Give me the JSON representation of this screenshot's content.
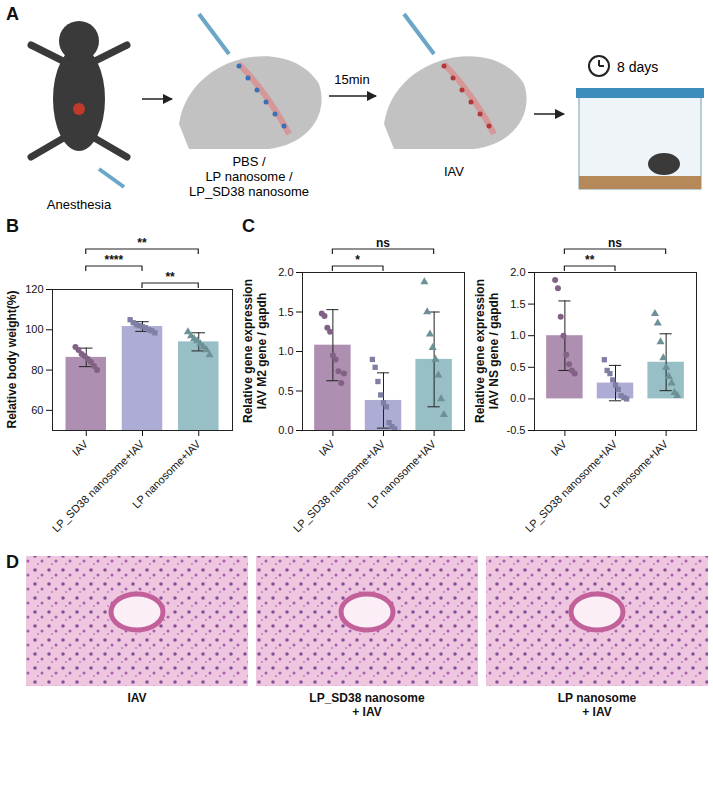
{
  "schematic": {
    "label": "A",
    "anesthesia": "Anesthesia",
    "treatment": [
      "PBS /",
      "LP nanosome /",
      "LP_SD38 nanosome"
    ],
    "interval": "15min",
    "infection": "IAV",
    "duration": "8 days"
  },
  "chart_data": [
    {
      "panel": "B",
      "type": "bar",
      "ylabel": [
        "Relative body weight(%)"
      ],
      "categories": [
        "IAV",
        "LP_SD38 nanosome+IAV",
        "LP nanosome+IAV"
      ],
      "values": [
        86.3,
        101.6,
        94.0
      ],
      "errors": [
        4.6,
        2.4,
        4.5
      ],
      "colors": [
        "#a07aa3",
        "#9d9dcc",
        "#86b4bb"
      ],
      "points": [
        {
          "marker": "circle",
          "values": [
            91.5,
            90,
            88,
            87,
            85.5,
            84,
            82,
            80
          ]
        },
        {
          "marker": "square",
          "values": [
            105,
            103.5,
            102.5,
            102,
            101.5,
            101,
            100,
            99.5,
            98.5
          ]
        },
        {
          "marker": "triangle",
          "values": [
            99,
            97,
            95.5,
            94.5,
            93,
            91.5,
            90,
            87.5
          ]
        }
      ],
      "comparisons": [
        {
          "from": "LP_SD38 nanosome+IAV",
          "to": "LP nanosome+IAV",
          "label": "**"
        },
        {
          "from": "IAV",
          "to": "LP_SD38 nanosome+IAV",
          "label": "****"
        },
        {
          "from": "IAV",
          "to": "LP nanosome+IAV",
          "label": "**"
        }
      ],
      "ylim": [
        50,
        120
      ],
      "yticks": [
        60,
        80,
        100,
        120
      ]
    },
    {
      "panel": "C",
      "type": "bar",
      "ylabel": [
        "Relative gene expression",
        "IAV M2 gene / gapdh"
      ],
      "categories": [
        "IAV",
        "LP_SD38 nanosome+IAV",
        "LP nanosome+IAV"
      ],
      "values": [
        1.08,
        0.38,
        0.9
      ],
      "errors": [
        0.45,
        0.35,
        0.6
      ],
      "colors": [
        "#a07aa3",
        "#9d9dcc",
        "#86b4bb"
      ],
      "points": [
        {
          "marker": "circle",
          "values": [
            1.48,
            1.45,
            1.3,
            1.25,
            0.95,
            0.9,
            0.75,
            0.6,
            0.72
          ]
        },
        {
          "marker": "square",
          "values": [
            0.9,
            0.8,
            0.62,
            0.45,
            0.35,
            0.3,
            0.1,
            0.05,
            0.02
          ]
        },
        {
          "marker": "triangle",
          "values": [
            1.88,
            1.5,
            1.22,
            1.05,
            0.9,
            0.7,
            0.4,
            0.2
          ]
        }
      ],
      "comparisons": [
        {
          "from": "IAV",
          "to": "LP_SD38 nanosome+IAV",
          "label": "*"
        },
        {
          "from": "IAV",
          "to": "LP nanosome+IAV",
          "label": "ns"
        }
      ],
      "ylim": [
        0,
        2.0
      ],
      "yticks": [
        {
          "value": 0,
          "label": "0.0"
        },
        0.5,
        {
          "value": 1,
          "label": "1.0"
        },
        1.5,
        {
          "value": 2,
          "label": "2.0"
        }
      ]
    },
    {
      "type": "bar",
      "ylabel": [
        "Relative gene expression",
        "IAV NS gene / gapdh"
      ],
      "categories": [
        "IAV",
        "LP_SD38 nanosome+IAV",
        "LP nanosome+IAV"
      ],
      "values": [
        1.0,
        0.25,
        0.58
      ],
      "errors": [
        0.55,
        0.28,
        0.45
      ],
      "colors": [
        "#a07aa3",
        "#9d9dcc",
        "#86b4bb"
      ],
      "points": [
        {
          "marker": "circle",
          "values": [
            1.88,
            1.75,
            1.3,
            1.0,
            0.7,
            0.55,
            0.45,
            0.4
          ]
        },
        {
          "marker": "square",
          "values": [
            0.62,
            0.45,
            0.4,
            0.3,
            0.22,
            0.15,
            0.05,
            0.02,
            0.0
          ]
        },
        {
          "marker": "triangle",
          "values": [
            1.35,
            1.2,
            0.9,
            0.65,
            0.5,
            0.35,
            0.25,
            0.1,
            0.05
          ]
        }
      ],
      "comparisons": [
        {
          "from": "IAV",
          "to": "LP_SD38 nanosome+IAV",
          "label": "**"
        },
        {
          "from": "IAV",
          "to": "LP nanosome+IAV",
          "label": "ns"
        }
      ],
      "ylim": [
        -0.5,
        2.0
      ],
      "yticks": [
        -0.5,
        {
          "value": 0,
          "label": "0.0"
        },
        0.5,
        {
          "value": 1,
          "label": "1.0"
        },
        1.5,
        {
          "value": 2,
          "label": "2.0"
        }
      ]
    }
  ],
  "histology": {
    "label": "D",
    "captions": [
      [
        "IAV"
      ],
      [
        "LP_SD38 nanosome",
        "+ IAV"
      ],
      [
        "LP nanosome",
        "+ IAV"
      ]
    ]
  }
}
